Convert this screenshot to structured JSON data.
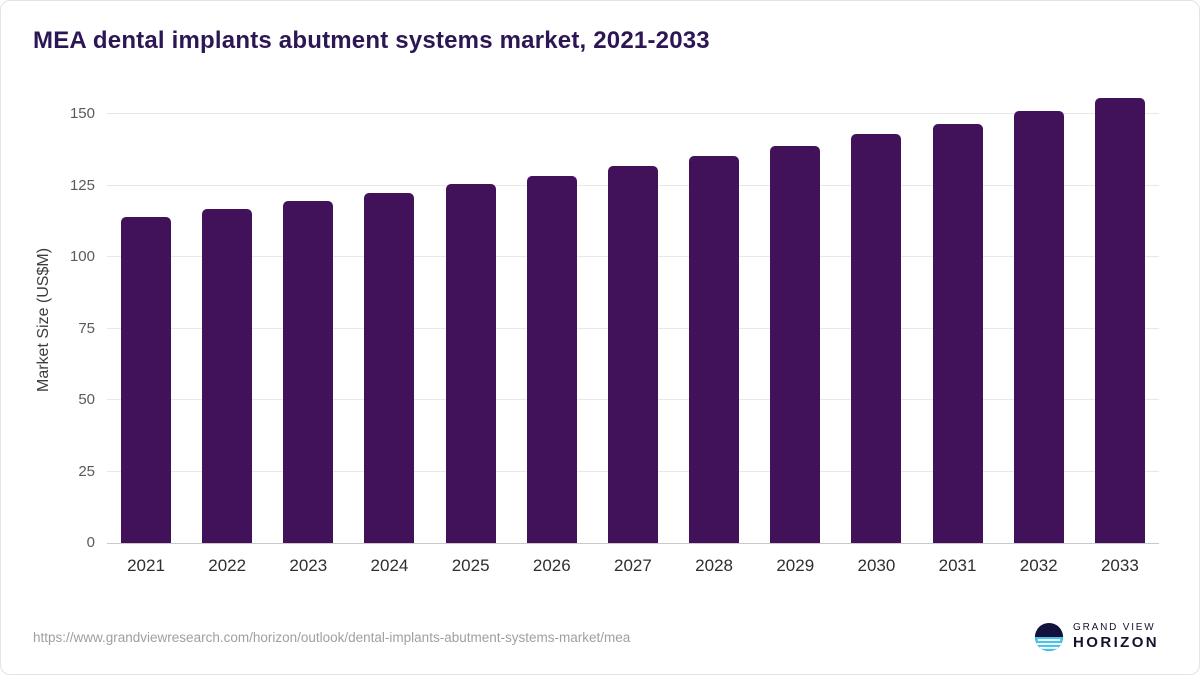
{
  "title": "MEA dental implants abutment systems market, 2021-2033",
  "chart_data": {
    "type": "bar",
    "categories": [
      "2021",
      "2022",
      "2023",
      "2024",
      "2025",
      "2026",
      "2027",
      "2028",
      "2029",
      "2030",
      "2031",
      "2032",
      "2033"
    ],
    "values": [
      114,
      117,
      119.5,
      122.5,
      125.5,
      128.5,
      132,
      135.5,
      139,
      143,
      146.5,
      151,
      155.5
    ],
    "title": "MEA dental implants abutment systems market, 2021-2033",
    "xlabel": "",
    "ylabel": "Market Size (US$M)",
    "ylim": [
      0,
      156
    ],
    "yticks": [
      0,
      25,
      50,
      75,
      100,
      125,
      150
    ],
    "bar_color": "#411159",
    "grid": true,
    "legend": false
  },
  "colors": {
    "bar": "#411159",
    "title": "#2d1654",
    "gridline": "#e8e8e8",
    "axis_line": "#c9c9c9"
  },
  "footer": {
    "source_url": "https://www.grandviewresearch.com/horizon/outlook/dental-implants-abutment-systems-market/mea",
    "logo_text_top": "GRAND VIEW",
    "logo_text_bottom": "HORIZON"
  }
}
